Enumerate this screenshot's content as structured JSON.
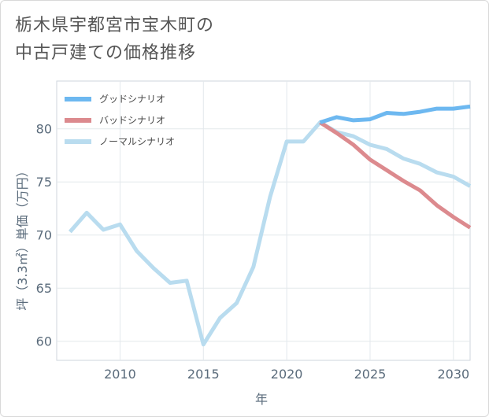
{
  "title": {
    "line1": "栃木県宇都宮市宝木町の",
    "line2": "中古戸建ての価格推移"
  },
  "chart_data": {
    "type": "line",
    "xlabel": "年",
    "ylabel": "坪（3.3㎡）単価（万円）",
    "xlim": [
      2006.2,
      2031
    ],
    "ylim": [
      58.2,
      84.5
    ],
    "xticks": [
      2010,
      2015,
      2020,
      2025,
      2030
    ],
    "yticks": [
      60,
      65,
      70,
      75,
      80
    ],
    "grid": true,
    "legend_position": "top-left",
    "series": [
      {
        "name": "グッドシナリオ",
        "color": "#6db8f0",
        "points": [
          [
            2022,
            80.6
          ],
          [
            2023,
            81.1
          ],
          [
            2024,
            80.8
          ],
          [
            2025,
            80.9
          ],
          [
            2026,
            81.5
          ],
          [
            2027,
            81.4
          ],
          [
            2028,
            81.6
          ],
          [
            2029,
            81.9
          ],
          [
            2030,
            81.9
          ],
          [
            2031,
            82.1
          ]
        ]
      },
      {
        "name": "バッドシナリオ",
        "color": "#dc8a8e",
        "points": [
          [
            2022,
            80.6
          ],
          [
            2023,
            79.6
          ],
          [
            2024,
            78.5
          ],
          [
            2025,
            77.1
          ],
          [
            2026,
            76.1
          ],
          [
            2027,
            75.1
          ],
          [
            2028,
            74.2
          ],
          [
            2029,
            72.8
          ],
          [
            2030,
            71.7
          ],
          [
            2031,
            70.7
          ]
        ]
      },
      {
        "name": "ノーマルシナリオ",
        "color": "#b9dcef",
        "points": [
          [
            2007,
            70.3
          ],
          [
            2008,
            72.1
          ],
          [
            2009,
            70.5
          ],
          [
            2010,
            71.0
          ],
          [
            2011,
            68.5
          ],
          [
            2012,
            66.9
          ],
          [
            2013,
            65.5
          ],
          [
            2014,
            65.7
          ],
          [
            2015,
            59.7
          ],
          [
            2016,
            62.2
          ],
          [
            2017,
            63.6
          ],
          [
            2018,
            67.0
          ],
          [
            2019,
            73.6
          ],
          [
            2020,
            78.8
          ],
          [
            2021,
            78.8
          ],
          [
            2022,
            80.6
          ],
          [
            2023,
            79.7
          ],
          [
            2024,
            79.3
          ],
          [
            2025,
            78.5
          ],
          [
            2026,
            78.1
          ],
          [
            2027,
            77.2
          ],
          [
            2028,
            76.7
          ],
          [
            2029,
            75.9
          ],
          [
            2030,
            75.5
          ],
          [
            2031,
            74.6
          ]
        ]
      }
    ]
  }
}
